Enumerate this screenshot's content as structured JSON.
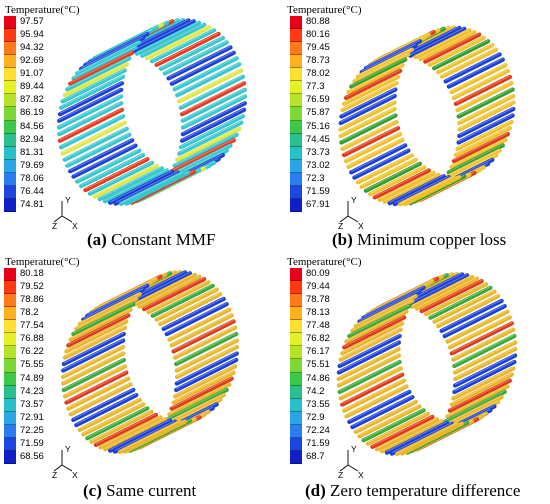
{
  "panels": [
    {
      "id": "a",
      "legend_title": "Temperature(°C)",
      "ticks": [
        "97.57",
        "95.94",
        "94.32",
        "92.69",
        "91.07",
        "89.44",
        "87.82",
        "86.19",
        "84.56",
        "82.94",
        "81.31",
        "79.69",
        "78.06",
        "76.44",
        "74.81"
      ],
      "caption_label": "(a)",
      "caption_text": "Constant MMF",
      "axis_labels": {
        "y": "Y",
        "z": "Z",
        "x": "X"
      }
    },
    {
      "id": "b",
      "legend_title": "Temperature(°C)",
      "ticks": [
        "80.88",
        "80.16",
        "79.45",
        "78.73",
        "78.02",
        "77.3",
        "76.59",
        "75.87",
        "75.16",
        "74.45",
        "73.73",
        "73.02",
        "72.3",
        "71.59",
        "67.91"
      ],
      "caption_label": "(b)",
      "caption_text": "Minimum copper loss",
      "axis_labels": {
        "y": "Y",
        "z": "Z",
        "x": "X"
      }
    },
    {
      "id": "c",
      "legend_title": "Temperature(°C)",
      "ticks": [
        "80.18",
        "79.52",
        "78.86",
        "78.2",
        "77.54",
        "76.88",
        "76.22",
        "75.55",
        "74.89",
        "74.23",
        "73.57",
        "72.91",
        "72.25",
        "71.59",
        "68.56"
      ],
      "caption_label": "(c)",
      "caption_text": "Same current",
      "axis_labels": {
        "y": "Y",
        "z": "Z",
        "x": "X"
      }
    },
    {
      "id": "d",
      "legend_title": "Temperature(°C)",
      "ticks": [
        "80.09",
        "79.44",
        "78.78",
        "78.13",
        "77.48",
        "76.82",
        "76.17",
        "75.51",
        "74.86",
        "74.2",
        "73.55",
        "72.9",
        "72.24",
        "71.59",
        "68.7"
      ],
      "caption_label": "(d)",
      "caption_text": "Zero temperature difference",
      "axis_labels": {
        "y": "Y",
        "z": "Z",
        "x": "X"
      }
    }
  ],
  "colorbar": [
    "#e8001a",
    "#ff3a10",
    "#ff7a18",
    "#ffb020",
    "#ffe030",
    "#e4f028",
    "#b4e428",
    "#7cd832",
    "#3cc848",
    "#28c090",
    "#28c0c8",
    "#2aa6e6",
    "#2b7cf0",
    "#1c46e0",
    "#1020c8"
  ],
  "ring_palette": {
    "a": {
      "base": "#35c6cf",
      "accents": [
        "#1a3fd9",
        "#e2e640",
        "#e83a1a"
      ]
    },
    "b": {
      "base": "#f0c12c",
      "accents": [
        "#1a3fd9",
        "#e03818",
        "#2f9d2f"
      ]
    },
    "c": {
      "base": "#eab62a",
      "accents": [
        "#1a3fd9",
        "#e03818",
        "#38a83a"
      ]
    },
    "d": {
      "base": "#eab62a",
      "accents": [
        "#1a3fd9",
        "#e03818",
        "#38a83a"
      ]
    }
  }
}
